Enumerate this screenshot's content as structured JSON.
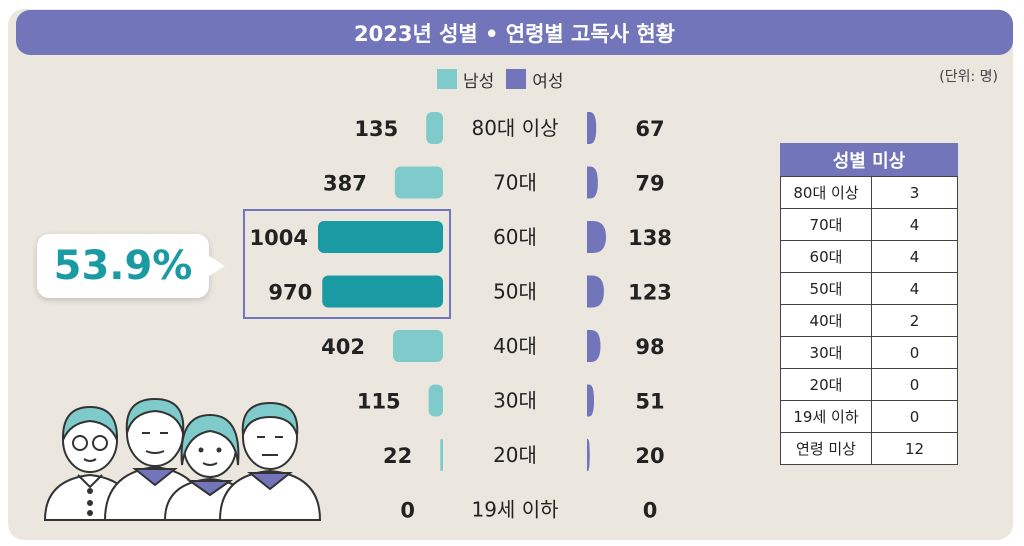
{
  "title": "2023년 성별 • 연령별 고독사 현황",
  "unit": "(단위: 명)",
  "legend": {
    "male": "남성",
    "female": "여성"
  },
  "colors": {
    "male_light": "#7fcbcc",
    "male_dark": "#1a9aa3",
    "female": "#7275ba",
    "header": "#7275ba",
    "background": "#ebe7df"
  },
  "highlight": {
    "percent": "53.9%"
  },
  "chart_data": {
    "type": "bar",
    "orientation": "horizontal-butterfly",
    "categories": [
      "80대 이상",
      "70대",
      "60대",
      "50대",
      "40대",
      "30대",
      "20대",
      "19세 이하"
    ],
    "series": [
      {
        "name": "남성",
        "values": [
          135,
          387,
          1004,
          970,
          402,
          115,
          22,
          0
        ]
      },
      {
        "name": "여성",
        "values": [
          67,
          79,
          138,
          123,
          98,
          51,
          20,
          0
        ]
      }
    ],
    "highlighted_categories": [
      "60대",
      "50대"
    ],
    "legend_position": "top-center"
  },
  "missing_table": {
    "title": "성별 미상",
    "rows": [
      {
        "label": "80대 이상",
        "value": "3"
      },
      {
        "label": "70대",
        "value": "4"
      },
      {
        "label": "60대",
        "value": "4"
      },
      {
        "label": "50대",
        "value": "4"
      },
      {
        "label": "40대",
        "value": "2"
      },
      {
        "label": "30대",
        "value": "0"
      },
      {
        "label": "20대",
        "value": "0"
      },
      {
        "label": "19세 이하",
        "value": "0"
      },
      {
        "label": "연령 미상",
        "value": "12"
      }
    ]
  }
}
